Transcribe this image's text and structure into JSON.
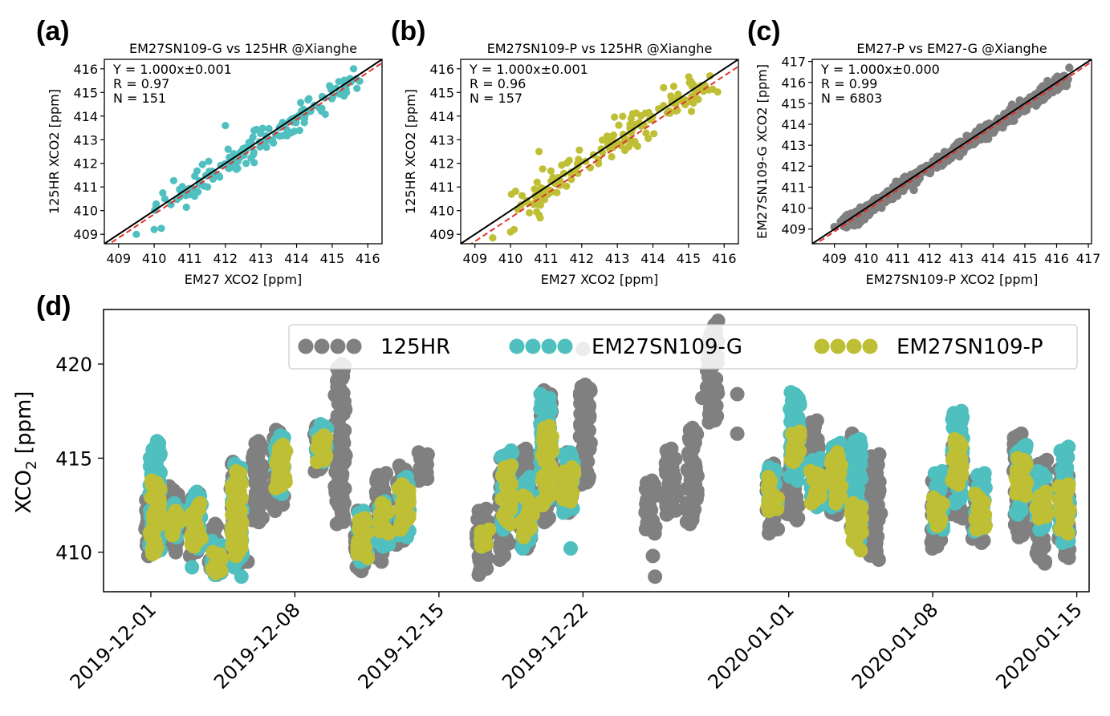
{
  "chart_data": [
    {
      "id": "a",
      "panel_label": "(a)",
      "type": "scatter",
      "title": "EM27SN109-G vs 125HR @Xianghe",
      "xlabel": "EM27 XCO2 [ppm]",
      "ylabel": "125HR XCO2 [ppm]",
      "xlim": [
        408.6,
        416.4
      ],
      "ylim": [
        408.6,
        416.4
      ],
      "xticks": [
        "409",
        "410",
        "411",
        "412",
        "413",
        "414",
        "415",
        "416"
      ],
      "yticks": [
        "409",
        "410",
        "411",
        "412",
        "413",
        "414",
        "415",
        "416"
      ],
      "stats": [
        "Y = 1.000x±0.001",
        "R = 0.97",
        "N = 151"
      ],
      "point_color": "#4fbfbf",
      "n": 151,
      "spread": 0.32,
      "seed": 11,
      "extra_points": [
        [
          409.5,
          409.0
        ],
        [
          410.0,
          409.2
        ],
        [
          410.2,
          409.25
        ],
        [
          410.3,
          410.5
        ],
        [
          412.0,
          413.6
        ],
        [
          415.6,
          416.0
        ],
        [
          414.7,
          414.2
        ]
      ],
      "reference_lines": [
        {
          "name": "1:1",
          "slope": 1.0,
          "intercept": 0,
          "color": "#000000",
          "dash": "solid"
        },
        {
          "name": "fit",
          "slope": 1.0,
          "intercept": -0.15,
          "color": "#e0332d",
          "dash": "dashed"
        }
      ]
    },
    {
      "id": "b",
      "panel_label": "(b)",
      "type": "scatter",
      "title": "EM27SN109-P vs 125HR @Xianghe",
      "xlabel": "EM27 XCO2 [ppm]",
      "ylabel": "125HR XCO2 [ppm]",
      "xlim": [
        408.6,
        416.4
      ],
      "ylim": [
        408.6,
        416.4
      ],
      "xticks": [
        "409",
        "410",
        "411",
        "412",
        "413",
        "414",
        "415",
        "416"
      ],
      "yticks": [
        "409",
        "410",
        "411",
        "412",
        "413",
        "414",
        "415",
        "416"
      ],
      "stats": [
        "Y = 1.000x±0.001",
        "R = 0.96",
        "N = 157"
      ],
      "point_color": "#bfbf36",
      "n": 157,
      "spread": 0.38,
      "seed": 23,
      "extra_points": [
        [
          409.5,
          408.85
        ],
        [
          410.0,
          409.1
        ],
        [
          410.1,
          409.2
        ],
        [
          410.8,
          412.5
        ],
        [
          415.2,
          414.8
        ],
        [
          415.6,
          415.7
        ],
        [
          414.3,
          415.2
        ]
      ],
      "reference_lines": [
        {
          "name": "1:1",
          "slope": 1.0,
          "intercept": 0,
          "color": "#000000",
          "dash": "solid"
        },
        {
          "name": "fit",
          "slope": 1.0,
          "intercept": -0.3,
          "color": "#e0332d",
          "dash": "dashed"
        }
      ]
    },
    {
      "id": "c",
      "panel_label": "(c)",
      "type": "scatter",
      "title": "EM27-P vs EM27-G @Xianghe",
      "xlabel": "EM27SN109-P XCO2 [ppm]",
      "ylabel": "EM27SN109-G XCO2 [ppm]",
      "xlim": [
        408.3,
        417.1
      ],
      "ylim": [
        408.3,
        417.1
      ],
      "xticks": [
        "409",
        "410",
        "411",
        "412",
        "413",
        "414",
        "415",
        "416",
        "417"
      ],
      "yticks": [
        "409",
        "410",
        "411",
        "412",
        "413",
        "414",
        "415",
        "416",
        "417"
      ],
      "stats": [
        "Y = 1.000x±0.000",
        "R = 0.99",
        "N = 6803"
      ],
      "point_color": "#808080",
      "n": 900,
      "spread": 0.16,
      "seed": 37,
      "extra_points": [
        [
          416.4,
          416.7
        ],
        [
          409.0,
          409.1
        ]
      ],
      "reference_lines": [
        {
          "name": "1:1",
          "slope": 1.0,
          "intercept": 0,
          "color": "#000000",
          "dash": "solid"
        },
        {
          "name": "fit",
          "slope": 1.0,
          "intercept": -0.12,
          "color": "#e0332d",
          "dash": "dashed"
        }
      ]
    },
    {
      "id": "d",
      "panel_label": "(d)",
      "type": "scatter",
      "title": "",
      "xlabel": "",
      "ylabel_main": "XCO",
      "ylabel_sub": "2",
      "ylabel_units": " [ppm]",
      "xlim_days": [
        -2.3,
        45.6
      ],
      "ylim": [
        407.9,
        422.9
      ],
      "yticks": [
        410,
        415,
        420
      ],
      "ytick_labels": [
        "410",
        "415",
        "420"
      ],
      "xticks": [
        {
          "day": 0,
          "label": "2019-12-01"
        },
        {
          "day": 7,
          "label": "2019-12-08"
        },
        {
          "day": 14,
          "label": "2019-12-15"
        },
        {
          "day": 21,
          "label": "2019-12-22"
        },
        {
          "day": 31,
          "label": "2020-01-01"
        },
        {
          "day": 38,
          "label": "2020-01-08"
        },
        {
          "day": 45,
          "label": "2020-01-15"
        }
      ],
      "legend_location": "top-right",
      "series": [
        {
          "name": "125HR",
          "color": "#808080",
          "clusters": [
            [
              0.0,
              409.8,
              413.0
            ],
            [
              1.1,
              410.0,
              413.5
            ],
            [
              2.1,
              409.8,
              413.2
            ],
            [
              3.1,
              408.8,
              411.5
            ],
            [
              4.1,
              409.3,
              414.8
            ],
            [
              5.2,
              411.6,
              415.9
            ],
            [
              6.2,
              412.2,
              416.5
            ],
            [
              8.2,
              414.3,
              416.7
            ],
            [
              9.2,
              411.5,
              420.0
            ],
            [
              10.2,
              409.0,
              412.2
            ],
            [
              11.2,
              409.5,
              414.2
            ],
            [
              12.2,
              410.4,
              414.6
            ],
            [
              13.2,
              413.8,
              415.3
            ],
            [
              16.1,
              408.8,
              412.3
            ],
            [
              17.2,
              409.6,
              415.1
            ],
            [
              18.2,
              410.2,
              415.5
            ],
            [
              19.2,
              411.6,
              418.6
            ],
            [
              20.2,
              412.1,
              415.3
            ],
            [
              21.1,
              413.6,
              418.9
            ],
            [
              24.3,
              411.0,
              413.8
            ],
            [
              25.3,
              412.0,
              415.5
            ],
            [
              26.3,
              411.5,
              416.6
            ],
            [
              27.3,
              416.9,
              422.3
            ],
            [
              30.2,
              411.0,
              414.7
            ],
            [
              31.2,
              411.7,
              414.8
            ],
            [
              32.2,
              414.3,
              417.0
            ],
            [
              33.2,
              412.0,
              415.5
            ],
            [
              34.2,
              410.8,
              416.3
            ],
            [
              35.2,
              409.6,
              415.2
            ],
            [
              38.2,
              410.2,
              414.0
            ],
            [
              39.2,
              411.8,
              416.2
            ],
            [
              40.2,
              410.5,
              413.8
            ],
            [
              42.2,
              410.8,
              416.3
            ],
            [
              43.3,
              409.4,
              414.9
            ],
            [
              44.4,
              409.7,
              414.5
            ]
          ],
          "extra_points": [
            [
              4.7,
              409.5
            ],
            [
              24.4,
              409.8
            ],
            [
              24.5,
              408.7
            ],
            [
              21.0,
              420.8
            ],
            [
              28.5,
              416.3
            ],
            [
              28.5,
              418.4
            ],
            [
              26.8,
              418.2
            ],
            [
              21.3,
              414.0
            ]
          ]
        },
        {
          "name": "EM27SN109-G",
          "color": "#4fbfbf",
          "clusters": [
            [
              0.2,
              410.0,
              415.9
            ],
            [
              1.2,
              410.8,
              412.6
            ],
            [
              2.2,
              410.2,
              413.2
            ],
            [
              3.2,
              408.8,
              410.6
            ],
            [
              4.2,
              409.2,
              414.7
            ],
            [
              6.3,
              413.1,
              416.2
            ],
            [
              8.3,
              414.8,
              416.8
            ],
            [
              10.3,
              409.5,
              412.2
            ],
            [
              11.3,
              410.3,
              412.7
            ],
            [
              12.3,
              410.8,
              414.0
            ],
            [
              17.3,
              411.2,
              415.4
            ],
            [
              18.3,
              410.2,
              414.0
            ],
            [
              19.2,
              412.6,
              418.4
            ],
            [
              20.3,
              412.1,
              415.3
            ],
            [
              30.2,
              412.2,
              414.5
            ],
            [
              31.3,
              413.8,
              418.5
            ],
            [
              32.3,
              412.4,
              415.0
            ],
            [
              33.3,
              412.4,
              415.8
            ],
            [
              34.3,
              410.5,
              416.0
            ],
            [
              38.3,
              411.2,
              414.3
            ],
            [
              39.2,
              412.6,
              417.5
            ],
            [
              40.3,
              411.1,
              414.2
            ],
            [
              42.3,
              412.0,
              415.7
            ],
            [
              43.3,
              411.2,
              414.3
            ],
            [
              44.4,
              410.5,
              415.6
            ]
          ],
          "extra_points": [
            [
              4.4,
              408.7
            ],
            [
              20.4,
              410.2
            ],
            [
              39.1,
              412.6
            ],
            [
              2.0,
              409.2
            ]
          ]
        },
        {
          "name": "EM27SN109-P",
          "color": "#bfbf36",
          "clusters": [
            [
              0.2,
              409.9,
              413.8
            ],
            [
              1.2,
              410.9,
              412.2
            ],
            [
              2.2,
              410.3,
              412.6
            ],
            [
              3.2,
              408.9,
              410.0
            ],
            [
              4.2,
              409.8,
              414.3
            ],
            [
              6.3,
              413.4,
              415.7
            ],
            [
              8.3,
              414.8,
              416.2
            ],
            [
              10.3,
              409.7,
              411.8
            ],
            [
              11.3,
              411.0,
              412.6
            ],
            [
              12.3,
              411.2,
              413.6
            ],
            [
              16.2,
              410.3,
              411.2
            ],
            [
              17.3,
              411.5,
              414.6
            ],
            [
              18.3,
              410.8,
              413.0
            ],
            [
              19.3,
              412.5,
              416.7
            ],
            [
              20.3,
              412.7,
              414.5
            ],
            [
              30.2,
              412.2,
              414.0
            ],
            [
              31.3,
              414.8,
              416.4
            ],
            [
              32.3,
              412.6,
              414.3
            ],
            [
              33.3,
              412.6,
              415.3
            ],
            [
              34.3,
              410.5,
              412.6
            ],
            [
              38.3,
              411.4,
              412.9
            ],
            [
              39.2,
              413.6,
              416.0
            ],
            [
              40.3,
              411.2,
              413.1
            ],
            [
              42.3,
              413.0,
              415.0
            ],
            [
              43.3,
              411.8,
              413.2
            ],
            [
              44.4,
              411.0,
              413.6
            ]
          ],
          "extra_points": [
            [
              34.5,
              410.1
            ]
          ]
        }
      ]
    }
  ]
}
